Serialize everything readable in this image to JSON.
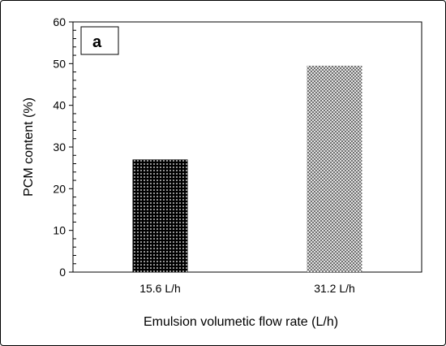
{
  "chart_data": {
    "type": "bar",
    "panel_label": "a",
    "title": "",
    "xlabel": "Emulsion volumetic flow rate (L/h)",
    "ylabel": "PCM content (%)",
    "categories": [
      "15.6 L/h",
      "31.2 L/h"
    ],
    "values": [
      27,
      49.5
    ],
    "ylim": [
      0,
      60
    ],
    "yticks": [
      0,
      10,
      20,
      30,
      40,
      50,
      60
    ],
    "grid": false,
    "bar_fills": [
      "dense-black-dots",
      "light-grey-cross-hatch"
    ]
  }
}
